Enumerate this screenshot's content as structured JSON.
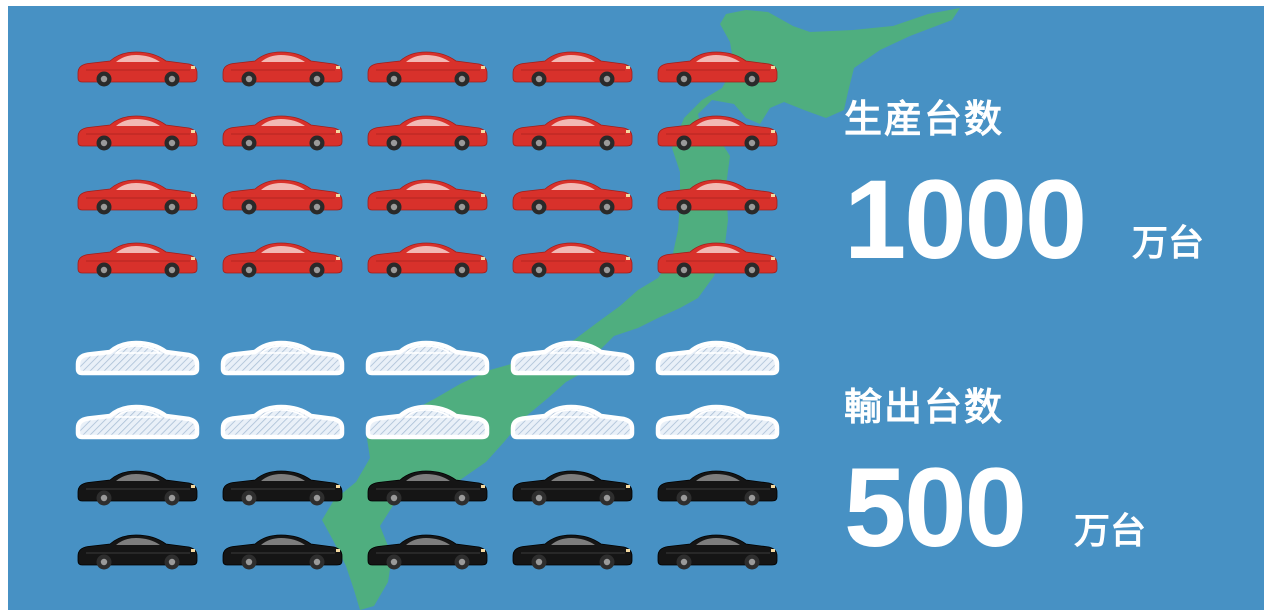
{
  "colors": {
    "background": "#4791c4",
    "map": "#4fae7f",
    "production_car": "#d8312b",
    "export_car": "#ffffff",
    "domestic_car": "#151515"
  },
  "labels": {
    "production": "生産台数",
    "export": "輸出台数"
  },
  "values": {
    "production": "1000",
    "export": "500",
    "unit": "万台"
  },
  "chart_data": {
    "type": "pictogram",
    "unit": "万台",
    "icon": "car-icon",
    "icon_value": 25,
    "series": [
      {
        "name": "生産台数",
        "value": 1000,
        "icons": 40,
        "rows": 8,
        "columns": 5
      },
      {
        "name": "輸出台数",
        "value": 500,
        "icons": 20,
        "rows": 4,
        "columns": 5
      }
    ],
    "icon_groups": [
      {
        "style": "red",
        "rows": 4,
        "count": 20
      },
      {
        "style": "white-outline",
        "rows": 2,
        "count": 10
      },
      {
        "style": "black",
        "rows": 2,
        "count": 10
      }
    ]
  }
}
